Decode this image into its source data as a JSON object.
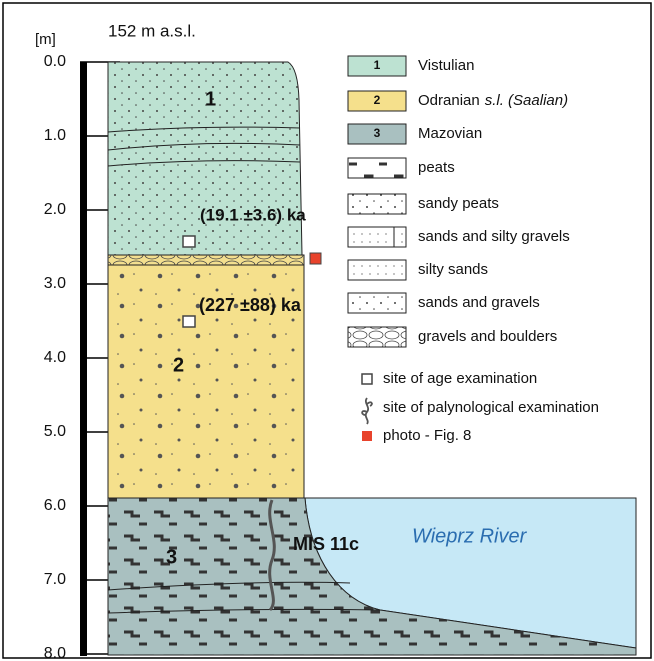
{
  "elevation": "152 m  a.s.l.",
  "unit": "[m]",
  "depth_labels": [
    "0.0",
    "1.0",
    "2.0",
    "3.0",
    "4.0",
    "5.0",
    "6.0",
    "7.0",
    "8.0"
  ],
  "layer_numbers": [
    "1",
    "2",
    "3"
  ],
  "dates": [
    "(19.1 ±3.6) ka",
    "(227 ±88) ka"
  ],
  "mis": "MIS 11c",
  "river": "Wieprz River",
  "legend": [
    {
      "key": "1",
      "label": "Vistulian"
    },
    {
      "key": "2",
      "label": "Odranian",
      "note": "s.l. (Saalian)"
    },
    {
      "key": "3",
      "label": "Mazovian"
    },
    {
      "label": "peats"
    },
    {
      "label": "sandy peats"
    },
    {
      "label": "sands and silty gravels"
    },
    {
      "label": "silty sands"
    },
    {
      "label": "sands and gravels"
    },
    {
      "label": "gravels and boulders"
    }
  ],
  "symbols": [
    "site of age examination",
    "site of palynological examination",
    "photo - Fig. 8"
  ]
}
